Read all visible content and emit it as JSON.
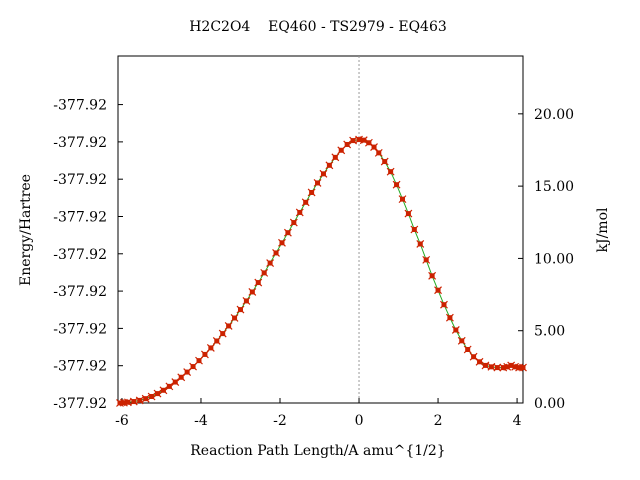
{
  "chart_data": {
    "type": "line",
    "title": "H2C2O4    EQ460 - TS2979 - EQ463",
    "xlabel": "Reaction Path Length/A amu^{1/2}",
    "ylabel_left": "Energy/Hartree",
    "ylabel_right": "kJ/mol",
    "xlim": [
      -6.1,
      4.15
    ],
    "right_ylim": [
      0,
      24
    ],
    "x_ticks": [
      -6,
      -4,
      -2,
      0,
      2,
      4
    ],
    "x_tick_labels": [
      "-6",
      "-4",
      "-2",
      "0",
      "2",
      "4"
    ],
    "left_tick_labels": [
      "-377.92",
      "-377.92",
      "-377.92",
      "-377.92",
      "-377.92",
      "-377.92",
      "-377.92",
      "-377.92",
      "-377.92"
    ],
    "left_tick_kj": [
      0.0,
      2.58,
      5.16,
      7.74,
      10.32,
      12.9,
      15.48,
      18.06,
      20.64
    ],
    "right_ticks": [
      0,
      5,
      10,
      15,
      20
    ],
    "right_tick_labels": [
      "0.00",
      "5.00",
      "10.00",
      "15.00",
      "20.00"
    ],
    "ts_line_x": 0,
    "grid": false,
    "line_color": "#22aa22",
    "marker_color": "#cc2200",
    "series": [
      {
        "x": [
          -6.05,
          -5.95,
          -5.85,
          -5.7,
          -5.55,
          -5.4,
          -5.25,
          -5.1,
          -4.95,
          -4.8,
          -4.65,
          -4.5,
          -4.35,
          -4.2,
          -4.05,
          -3.9,
          -3.75,
          -3.6,
          -3.45,
          -3.3,
          -3.15,
          -3.0,
          -2.85,
          -2.7,
          -2.55,
          -2.4,
          -2.25,
          -2.1,
          -1.95,
          -1.8,
          -1.65,
          -1.5,
          -1.35,
          -1.2,
          -1.05,
          -0.9,
          -0.75,
          -0.6,
          -0.45,
          -0.3,
          -0.15,
          0.0,
          0.12,
          0.25,
          0.38,
          0.5,
          0.65,
          0.8,
          0.95,
          1.1,
          1.25,
          1.4,
          1.55,
          1.7,
          1.85,
          2.0,
          2.15,
          2.3,
          2.45,
          2.6,
          2.75,
          2.9,
          3.05,
          3.2,
          3.35,
          3.5,
          3.65,
          3.75,
          3.85,
          3.95,
          4.05,
          4.15
        ],
        "y": [
          0.0,
          0.02,
          0.05,
          0.1,
          0.18,
          0.3,
          0.45,
          0.65,
          0.88,
          1.15,
          1.45,
          1.78,
          2.14,
          2.52,
          2.93,
          3.36,
          3.81,
          4.29,
          4.8,
          5.33,
          5.88,
          6.46,
          7.06,
          7.68,
          8.33,
          9.0,
          9.68,
          10.38,
          11.08,
          11.78,
          12.48,
          13.18,
          13.88,
          14.56,
          15.22,
          15.85,
          16.44,
          16.99,
          17.48,
          17.88,
          18.15,
          18.22,
          18.18,
          18.0,
          17.7,
          17.3,
          16.7,
          16.0,
          15.1,
          14.1,
          13.1,
          12.0,
          11.0,
          9.9,
          8.8,
          7.8,
          6.8,
          5.9,
          5.05,
          4.3,
          3.7,
          3.2,
          2.85,
          2.6,
          2.5,
          2.45,
          2.45,
          2.5,
          2.6,
          2.5,
          2.45,
          2.45
        ]
      }
    ]
  }
}
